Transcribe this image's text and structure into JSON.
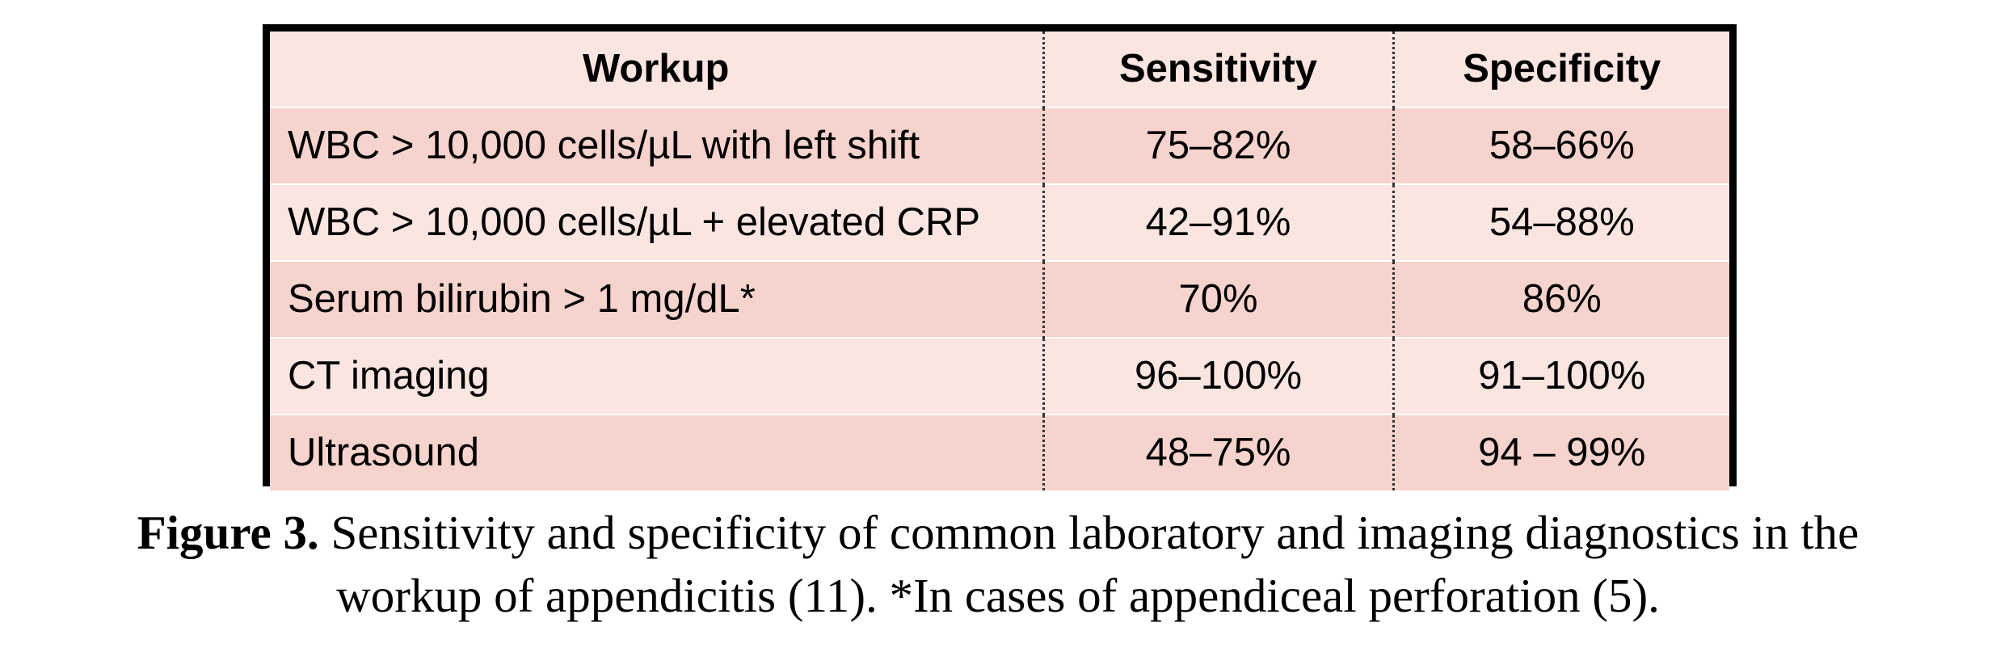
{
  "table": {
    "headers": [
      "Workup",
      "Sensitivity",
      "Specificity"
    ],
    "rows": [
      {
        "workup": "WBC > 10,000 cells/µL with left shift",
        "sensitivity": "75–82%",
        "specificity": "58–66%"
      },
      {
        "workup": "WBC > 10,000 cells/µL + elevated CRP",
        "sensitivity": "42–91%",
        "specificity": "54–88%"
      },
      {
        "workup": "Serum bilirubin > 1 mg/dL*",
        "sensitivity": "70%",
        "specificity": "86%"
      },
      {
        "workup": "CT imaging",
        "sensitivity": "96–100%",
        "specificity": "91–100%"
      },
      {
        "workup": "Ultrasound",
        "sensitivity": "48–75%",
        "specificity": "94 – 99%"
      }
    ]
  },
  "caption": {
    "label": "Figure 3.",
    "line1": "Sensitivity and specificity of common laboratory and imaging diagnostics in the",
    "line2": "workup of appendicitis (11). *In cases of appendiceal perforation (5)."
  },
  "colors": {
    "header_bg": "#fbe5e1",
    "row_dark": "#f6d3cc",
    "row_light": "#fbe5e1",
    "border": "#000000"
  }
}
